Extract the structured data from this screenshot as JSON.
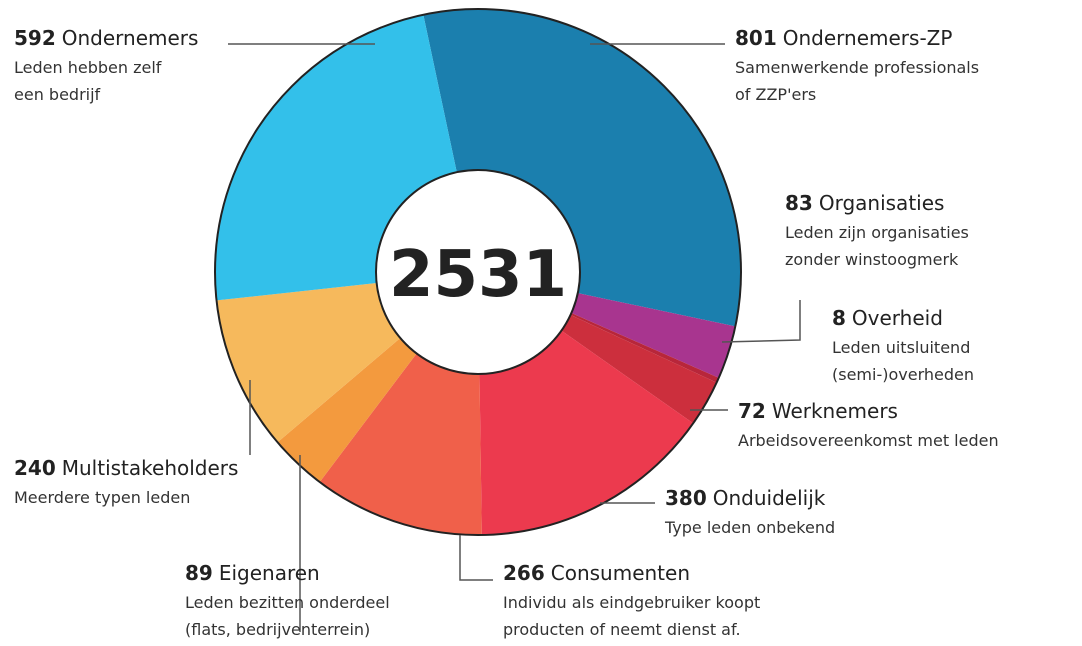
{
  "chart_data": {
    "type": "donut",
    "total": 2531,
    "categories": [
      "Ondernemers-ZP",
      "Organisaties",
      "Overheid",
      "Werknemers",
      "Onduidelijk",
      "Consumenten",
      "Eigenaren",
      "Multistakeholders",
      "Ondernemers"
    ],
    "values": [
      801,
      83,
      8,
      72,
      380,
      266,
      89,
      240,
      592
    ],
    "descriptions": [
      [
        "Samenwerkende professionals",
        "of ZZP'ers"
      ],
      [
        "Leden zijn organisaties",
        "zonder winstoogmerk"
      ],
      [
        "Leden uitsluitend",
        "(semi-)overheden"
      ],
      [
        "Arbeidsovereenkomst met leden"
      ],
      [
        "Type leden onbekend"
      ],
      [
        "Individu als eindgebruiker koopt",
        "producten of neemt dienst af."
      ],
      [
        "Leden bezitten onderdeel",
        "(flats, bedrijventerrein)"
      ],
      [
        "Meerdere typen leden"
      ],
      [
        "Leden hebben zelf",
        "een bedrijf"
      ]
    ],
    "colors": [
      "#1b7fae",
      "#a8358f",
      "#b8263a",
      "#cc2f3d",
      "#ec3a4e",
      "#f0604a",
      "#f39a3e",
      "#f6b95c",
      "#33c0ea"
    ]
  }
}
